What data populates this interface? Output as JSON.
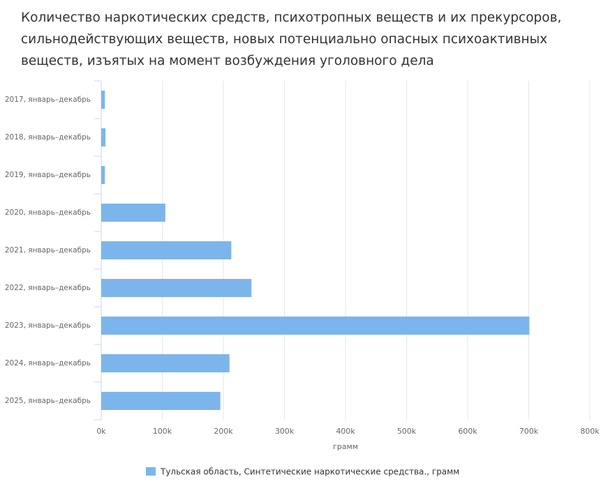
{
  "chart_data": {
    "type": "hbar",
    "title": "Количество наркотических средств, психотропных веществ и их прекурсоров, сильнодействующих веществ, новых потенциально опасных психоактивных веществ, изъятых на момент возбуждения уголовного дела",
    "categories": [
      "2017, январь–декабрь",
      "2018, январь–декабрь",
      "2019, январь–декабрь",
      "2020, январь–декабрь",
      "2021, январь–декабрь",
      "2022, январь–декабрь",
      "2023, январь–декабрь",
      "2024, январь–декабрь",
      "2025, январь–декабрь"
    ],
    "series": [
      {
        "name": "Тульская область, Синтетические наркотические средства., грамм",
        "color": "#7cb5ec",
        "values": [
          6000,
          7000,
          6000,
          105000,
          213000,
          246000,
          701000,
          210000,
          195000
        ]
      }
    ],
    "xlabel": "грамм",
    "xlim": [
      0,
      800000
    ],
    "xticks": [
      {
        "value": 0,
        "label": "0k"
      },
      {
        "value": 100000,
        "label": "100k"
      },
      {
        "value": 200000,
        "label": "200k"
      },
      {
        "value": 300000,
        "label": "300k"
      },
      {
        "value": 400000,
        "label": "400k"
      },
      {
        "value": 500000,
        "label": "500k"
      },
      {
        "value": 600000,
        "label": "600k"
      },
      {
        "value": 700000,
        "label": "700k"
      },
      {
        "value": 800000,
        "label": "800k"
      }
    ],
    "grid": true
  }
}
